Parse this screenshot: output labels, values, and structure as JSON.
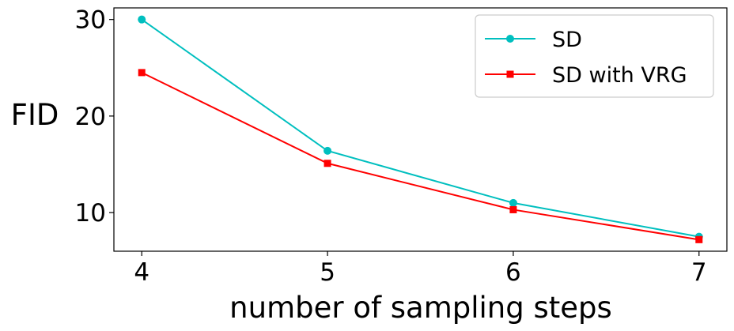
{
  "chart_data": {
    "type": "line",
    "x": [
      4,
      5,
      6,
      7
    ],
    "series": [
      {
        "name": "SD",
        "values": [
          30.0,
          16.4,
          11.0,
          7.5
        ],
        "color": "#00bfbf",
        "marker": "circle"
      },
      {
        "name": "SD with VRG",
        "values": [
          24.5,
          15.1,
          10.3,
          7.2
        ],
        "color": "#ff0000",
        "marker": "square"
      }
    ],
    "xlabel": "number of sampling steps",
    "ylabel": "FID",
    "xticks": [
      4,
      5,
      6,
      7
    ],
    "yticks": [
      10,
      20,
      30
    ],
    "xlim": [
      3.85,
      7.15
    ],
    "ylim": [
      6.0,
      31.2
    ],
    "grid": false,
    "legend": "top-right"
  }
}
